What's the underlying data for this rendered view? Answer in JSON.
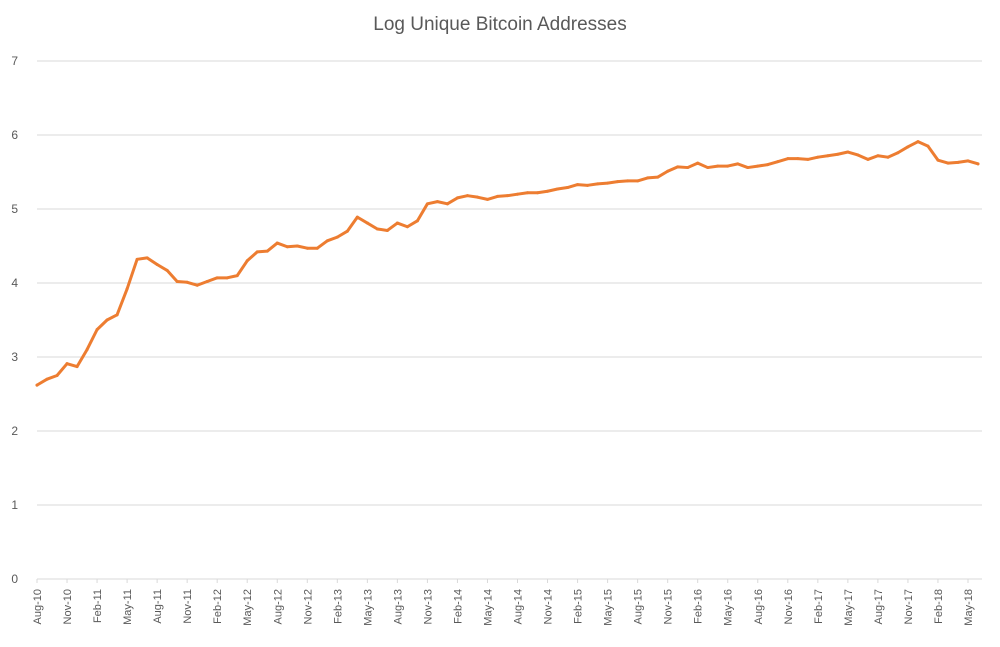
{
  "chart_data": {
    "type": "line",
    "title": "Log Unique Bitcoin Addresses",
    "xlabel": "",
    "ylabel": "",
    "ylim": [
      0,
      7
    ],
    "yticks": [
      0,
      1,
      2,
      3,
      4,
      5,
      6,
      7
    ],
    "grid": true,
    "legend": "none",
    "color": "#ed7d31",
    "x_tick_labels": [
      "Aug-10",
      "Nov-10",
      "Feb-11",
      "May-11",
      "Aug-11",
      "Nov-11",
      "Feb-12",
      "May-12",
      "Aug-12",
      "Nov-12",
      "Feb-13",
      "May-13",
      "Aug-13",
      "Nov-13",
      "Feb-14",
      "May-14",
      "Aug-14",
      "Nov-14",
      "Feb-15",
      "May-15",
      "Aug-15",
      "Nov-15",
      "Feb-16",
      "May-16",
      "Aug-16",
      "Nov-16",
      "Feb-17",
      "May-17",
      "Aug-17",
      "Nov-17",
      "Feb-18",
      "May-18"
    ],
    "series": [
      {
        "x": [
          "Aug-10",
          "Sep-10",
          "Oct-10",
          "Nov-10",
          "Dec-10",
          "Jan-11",
          "Feb-11",
          "Mar-11",
          "Apr-11",
          "May-11",
          "Jun-11",
          "Jul-11",
          "Aug-11",
          "Sep-11",
          "Oct-11",
          "Nov-11",
          "Dec-11",
          "Jan-12",
          "Feb-12",
          "Mar-12",
          "Apr-12",
          "May-12",
          "Jun-12",
          "Jul-12",
          "Aug-12",
          "Sep-12",
          "Oct-12",
          "Nov-12",
          "Dec-12",
          "Jan-13",
          "Feb-13",
          "Mar-13",
          "Apr-13",
          "May-13",
          "Jun-13",
          "Jul-13",
          "Aug-13",
          "Sep-13",
          "Oct-13",
          "Nov-13",
          "Dec-13",
          "Jan-14",
          "Feb-14",
          "Mar-14",
          "Apr-14",
          "May-14",
          "Jun-14",
          "Jul-14",
          "Aug-14",
          "Sep-14",
          "Oct-14",
          "Nov-14",
          "Dec-14",
          "Jan-15",
          "Feb-15",
          "Mar-15",
          "Apr-15",
          "May-15",
          "Jun-15",
          "Jul-15",
          "Aug-15",
          "Sep-15",
          "Oct-15",
          "Nov-15",
          "Dec-15",
          "Jan-16",
          "Feb-16",
          "Mar-16",
          "Apr-16",
          "May-16",
          "Jun-16",
          "Jul-16",
          "Aug-16",
          "Sep-16",
          "Oct-16",
          "Nov-16",
          "Dec-16",
          "Jan-17",
          "Feb-17",
          "Mar-17",
          "Apr-17",
          "May-17",
          "Jun-17",
          "Jul-17",
          "Aug-17",
          "Sep-17",
          "Oct-17",
          "Nov-17",
          "Dec-17",
          "Jan-18",
          "Feb-18",
          "Mar-18",
          "Apr-18",
          "May-18",
          "Jun-18"
        ],
        "values": [
          2.62,
          2.7,
          2.75,
          2.91,
          2.87,
          3.1,
          3.37,
          3.5,
          3.57,
          3.92,
          4.32,
          4.34,
          4.25,
          4.17,
          4.02,
          4.01,
          3.97,
          4.02,
          4.07,
          4.07,
          4.1,
          4.3,
          4.42,
          4.43,
          4.54,
          4.49,
          4.5,
          4.47,
          4.47,
          4.57,
          4.62,
          4.7,
          4.89,
          4.81,
          4.73,
          4.71,
          4.81,
          4.76,
          4.84,
          5.07,
          5.1,
          5.07,
          5.15,
          5.18,
          5.16,
          5.13,
          5.17,
          5.18,
          5.2,
          5.22,
          5.22,
          5.24,
          5.27,
          5.29,
          5.33,
          5.32,
          5.34,
          5.35,
          5.37,
          5.38,
          5.38,
          5.42,
          5.43,
          5.51,
          5.57,
          5.56,
          5.62,
          5.56,
          5.58,
          5.58,
          5.61,
          5.56,
          5.58,
          5.6,
          5.64,
          5.68,
          5.68,
          5.67,
          5.7,
          5.72,
          5.74,
          5.77,
          5.73,
          5.67,
          5.72,
          5.7,
          5.76,
          5.84,
          5.91,
          5.85,
          5.66,
          5.62,
          5.63,
          5.65,
          5.61
        ]
      }
    ]
  }
}
